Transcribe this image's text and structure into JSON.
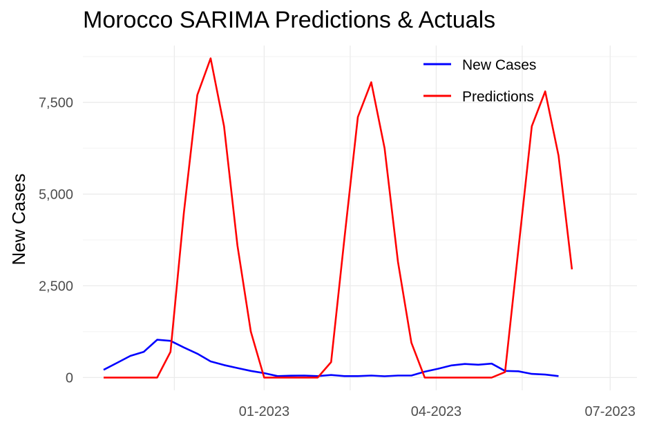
{
  "chart_data": {
    "type": "line",
    "title": "Morocco SARIMA Predictions & Actuals",
    "xlabel": "",
    "ylabel": "New Cases",
    "x_ticks": [
      "01-2023",
      "04-2023",
      "07-2023"
    ],
    "y_ticks": [
      {
        "value": 0,
        "label": "0"
      },
      {
        "value": 2500,
        "label": "2,500"
      },
      {
        "value": 5000,
        "label": "5,000"
      },
      {
        "value": 7500,
        "label": "7,500"
      }
    ],
    "ylim": [
      -350,
      9050
    ],
    "x": [
      "2022-10-09",
      "2022-10-16",
      "2022-10-23",
      "2022-10-30",
      "2022-11-06",
      "2022-11-13",
      "2022-11-20",
      "2022-11-27",
      "2022-12-04",
      "2022-12-11",
      "2022-12-18",
      "2022-12-25",
      "2023-01-01",
      "2023-01-08",
      "2023-01-15",
      "2023-01-22",
      "2023-01-29",
      "2023-02-05",
      "2023-02-12",
      "2023-02-19",
      "2023-02-26",
      "2023-03-05",
      "2023-03-12",
      "2023-03-19",
      "2023-03-26",
      "2023-04-02",
      "2023-04-09",
      "2023-04-16",
      "2023-04-23",
      "2023-04-30",
      "2023-05-07",
      "2023-05-14",
      "2023-05-21",
      "2023-05-28",
      "2023-06-04",
      "2023-06-11",
      "2023-06-18",
      "2023-06-25",
      "2023-07-02"
    ],
    "series": [
      {
        "name": "New Cases",
        "color": "#0000ff",
        "values": [
          210,
          400,
          590,
          700,
          1030,
          1000,
          820,
          650,
          440,
          340,
          260,
          180,
          120,
          40,
          50,
          55,
          40,
          70,
          40,
          40,
          55,
          35,
          55,
          55,
          160,
          240,
          330,
          370,
          350,
          380,
          180,
          170,
          100,
          80,
          40,
          null,
          null,
          null,
          null
        ]
      },
      {
        "name": "Predictions",
        "color": "#ff0000",
        "values": [
          0,
          0,
          0,
          0,
          0,
          700,
          4500,
          7700,
          8700,
          6850,
          3600,
          1250,
          0,
          0,
          0,
          0,
          0,
          420,
          3800,
          7100,
          8050,
          6250,
          3150,
          950,
          0,
          0,
          0,
          0,
          0,
          0,
          150,
          3500,
          6850,
          7800,
          6050,
          2950,
          null,
          null,
          null
        ]
      }
    ],
    "legend_placement": "top-right",
    "grid": true
  }
}
